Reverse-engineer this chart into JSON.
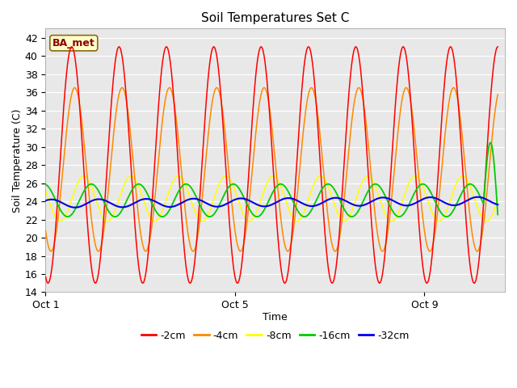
{
  "title": "Soil Temperatures Set C",
  "xlabel": "Time",
  "ylabel": "Soil Temperature (C)",
  "ylim": [
    14,
    43
  ],
  "yticks": [
    14,
    16,
    18,
    20,
    22,
    24,
    26,
    28,
    30,
    32,
    34,
    36,
    38,
    40,
    42
  ],
  "xtick_labels": [
    "Oct 1",
    "Oct 5",
    "Oct 9"
  ],
  "xtick_positions": [
    0,
    4,
    8
  ],
  "xlim": [
    0,
    9.7
  ],
  "colors": {
    "-2cm": "#FF0000",
    "-4cm": "#FF8800",
    "-8cm": "#FFFF00",
    "-16cm": "#00CC00",
    "-32cm": "#0000EE"
  },
  "legend_label": "BA_met",
  "amp_2": 13.0,
  "amp_4": 9.0,
  "amp_8": 2.5,
  "amp_16": 1.8,
  "amp_32": 0.45,
  "mean_2": 28.0,
  "mean_4": 27.5,
  "mean_8": 24.3,
  "mean_16": 24.1,
  "mean_32": 23.75,
  "phase_2": -1.9,
  "phase_4": -2.3,
  "phase_8": -3.5,
  "phase_16": -4.5,
  "phase_32": -5.5,
  "drift_2": -0.0,
  "drift_4": -0.0,
  "drift_32": 0.03,
  "n_points": 1000,
  "t_end": 9.55,
  "spike_start": 9.25,
  "spike_amp": 8.0,
  "label_color": "#8B0000",
  "bbox_facecolor": "#FFFFCC",
  "bbox_edgecolor": "#8B6914"
}
